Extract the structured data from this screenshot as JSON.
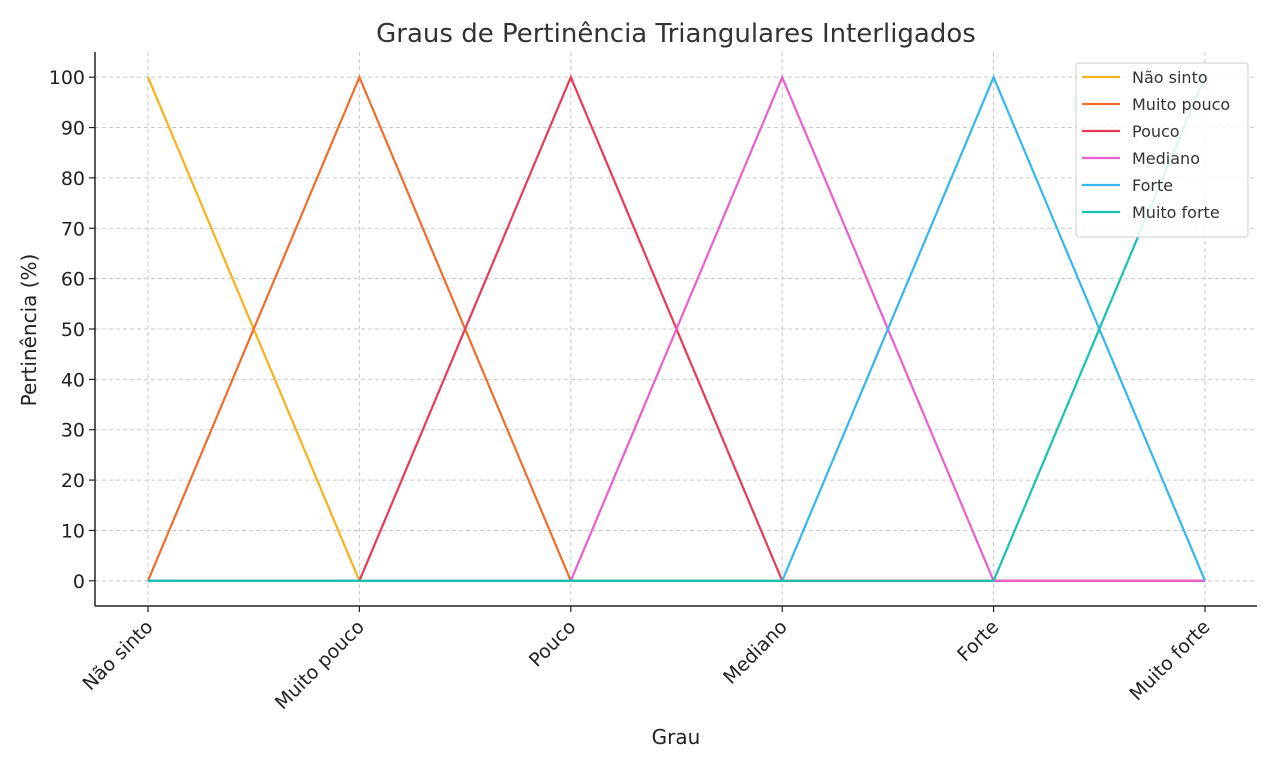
{
  "chart_data": {
    "type": "line",
    "title": "Graus de Pertinência Triangulares Interligados",
    "xlabel": "Grau",
    "ylabel": "Pertinência (%)",
    "categories": [
      "Não sinto",
      "Muito pouco",
      "Pouco",
      "Mediano",
      "Forte",
      "Muito forte"
    ],
    "ylim": [
      -5,
      105
    ],
    "yticks": [
      0,
      10,
      20,
      30,
      40,
      50,
      60,
      70,
      80,
      90,
      100
    ],
    "grid": true,
    "legend_position": "top-right",
    "series": [
      {
        "name": "Não sinto",
        "color": "#f5b21a",
        "values": [
          100,
          0,
          0,
          0,
          0,
          0
        ]
      },
      {
        "name": "Muito pouco",
        "color": "#ee6d2c",
        "values": [
          0,
          100,
          0,
          0,
          0,
          0
        ]
      },
      {
        "name": "Pouco",
        "color": "#e53a58",
        "values": [
          0,
          0,
          100,
          0,
          0,
          0
        ]
      },
      {
        "name": "Mediano",
        "color": "#ea5fcc",
        "values": [
          0,
          0,
          0,
          100,
          0,
          0
        ]
      },
      {
        "name": "Forte",
        "color": "#35b7ee",
        "values": [
          0,
          0,
          0,
          0,
          100,
          0
        ]
      },
      {
        "name": "Muito forte",
        "color": "#14c3b0",
        "values": [
          0,
          0,
          0,
          0,
          0,
          100
        ]
      }
    ]
  }
}
